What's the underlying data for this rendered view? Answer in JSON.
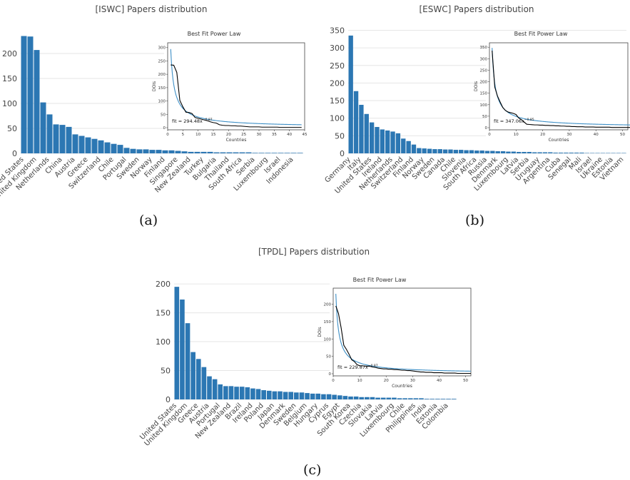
{
  "figure": {
    "labels": [
      "(a)",
      "(b)",
      "(c)"
    ]
  },
  "chart_data": [
    {
      "type": "bar",
      "title": "[ISWC] Papers distribution",
      "categories": [
        "United States",
        "",
        "United Kingdom",
        "",
        "Netherlands",
        "",
        "China",
        "",
        "Austria",
        "",
        "Greece",
        "",
        "Switzerland",
        "",
        "Chile",
        "",
        "Portugal",
        "",
        "Sweden",
        "",
        "Norway",
        "",
        "Finland",
        "",
        "Singapore",
        "",
        "New Zealand",
        "",
        "Turkey",
        "",
        "Bulgaria",
        "",
        "Thailand",
        "",
        "South Africa",
        "",
        "Serbia",
        "",
        "Luxembourg",
        "",
        "Israel",
        "",
        "Indonesia",
        ""
      ],
      "values": [
        235,
        234,
        207,
        102,
        78,
        58,
        57,
        53,
        38,
        35,
        32,
        29,
        26,
        22,
        19,
        17,
        11,
        9,
        8,
        8,
        7,
        7,
        6,
        6,
        5,
        4,
        3,
        3,
        3,
        3,
        2,
        2,
        2,
        2,
        2,
        2,
        1,
        1,
        1,
        1,
        1,
        1,
        1,
        1
      ],
      "ylim": [
        0,
        250
      ],
      "yticks": [
        0,
        50,
        100,
        150,
        200
      ],
      "inset": {
        "type": "line",
        "title": "Best Fit Power Law",
        "xlabel": "Countries",
        "ylabel": "DOIs",
        "xlim": [
          0,
          45
        ],
        "ylim": [
          0,
          310
        ],
        "xticks": [
          0,
          5,
          10,
          15,
          20,
          25,
          30,
          35,
          40,
          45
        ],
        "yticks": [
          0,
          50,
          100,
          150,
          200,
          250,
          300
        ],
        "fit_label": "fit = 294.48x",
        "fit_exponent": "−0.87",
        "fit_a": 294.48,
        "fit_b": 0.87,
        "series": [
          {
            "x": [
              1,
              2,
              3,
              4,
              5,
              6,
              7,
              8,
              9,
              10,
              11,
              12,
              13,
              14,
              15,
              16,
              17,
              18,
              19,
              20,
              21,
              22,
              23,
              24,
              25,
              26,
              27,
              28,
              29,
              30,
              31,
              32,
              33,
              34,
              35,
              36,
              37,
              38,
              39,
              40,
              41,
              42,
              43,
              44
            ],
            "y": [
              235,
              234,
              207,
              102,
              78,
              58,
              57,
              53,
              38,
              35,
              32,
              29,
              26,
              22,
              19,
              17,
              11,
              9,
              8,
              8,
              7,
              7,
              6,
              6,
              5,
              4,
              3,
              3,
              3,
              3,
              2,
              2,
              2,
              2,
              2,
              2,
              1,
              1,
              1,
              1,
              1,
              1,
              1,
              1
            ]
          }
        ]
      }
    },
    {
      "type": "bar",
      "title": "[ESWC] Papers distribution",
      "categories": [
        "Germany",
        "",
        "Italy",
        "",
        "United States",
        "",
        "Ireland",
        "",
        "Netherlands",
        "",
        "Switzerland",
        "",
        "Finland",
        "",
        "Norway",
        "",
        "Sweden",
        "",
        "Canada",
        "",
        "Chile",
        "",
        "Slovenia",
        "",
        "South Africa",
        "",
        "Russia",
        "",
        "Denmark",
        "",
        "Luxembourg",
        "",
        "Latvia",
        "",
        "Serbia",
        "",
        "Uruguay",
        "",
        "Argentina",
        "",
        "Cuba",
        "",
        "Senegal",
        "",
        "Mali",
        "",
        "Israel",
        "",
        "Ukraine",
        "",
        "Estonia",
        "",
        "Vietnam"
      ],
      "values": [
        335,
        177,
        138,
        112,
        88,
        75,
        68,
        65,
        62,
        57,
        42,
        35,
        25,
        15,
        14,
        13,
        12,
        12,
        11,
        11,
        10,
        10,
        9,
        9,
        8,
        8,
        7,
        7,
        6,
        6,
        5,
        5,
        4,
        4,
        4,
        3,
        3,
        3,
        3,
        2,
        2,
        2,
        2,
        2,
        2,
        1,
        1,
        1,
        1,
        1,
        1,
        1,
        1
      ],
      "ylim": [
        0,
        355
      ],
      "yticks": [
        0,
        50,
        100,
        150,
        200,
        250,
        300,
        350
      ],
      "inset": {
        "type": "line",
        "title": "Best Fit Power Law",
        "xlabel": "Countries",
        "ylabel": "DOIs",
        "xlim": [
          0,
          52
        ],
        "ylim": [
          0,
          360
        ],
        "xticks": [
          0,
          10,
          20,
          30,
          40,
          50
        ],
        "yticks": [
          0,
          50,
          100,
          150,
          200,
          250,
          300,
          350
        ],
        "fit_label": "fit = 347.06x",
        "fit_exponent": "−0.85",
        "fit_a": 347.06,
        "fit_b": 0.85,
        "series": [
          {
            "x": [
              1,
              2,
              3,
              4,
              5,
              6,
              7,
              8,
              9,
              10,
              11,
              12,
              13,
              14,
              15,
              16,
              17,
              18,
              19,
              20,
              21,
              22,
              23,
              24,
              25,
              26,
              27,
              28,
              29,
              30,
              31,
              32,
              33,
              34,
              35,
              36,
              37,
              38,
              39,
              40,
              41,
              42,
              43,
              44,
              45,
              46,
              47,
              48,
              49,
              50,
              51,
              52,
              53
            ],
            "y": [
              335,
              177,
              138,
              112,
              88,
              75,
              68,
              65,
              62,
              57,
              42,
              35,
              25,
              15,
              14,
              13,
              12,
              12,
              11,
              11,
              10,
              10,
              9,
              9,
              8,
              8,
              7,
              7,
              6,
              6,
              5,
              5,
              4,
              4,
              4,
              3,
              3,
              3,
              3,
              2,
              2,
              2,
              2,
              2,
              2,
              1,
              1,
              1,
              1,
              1,
              1,
              1,
              1
            ]
          }
        ]
      }
    },
    {
      "type": "bar",
      "title": "[TPDL] Papers distribution",
      "categories": [
        "United States",
        "",
        "United Kingdom",
        "",
        "Greece",
        "",
        "Austria",
        "",
        "Portugal",
        "",
        "New Zealand",
        "",
        "Brazil",
        "",
        "Ireland",
        "",
        "Poland",
        "",
        "Japan",
        "",
        "Denmark",
        "",
        "Sweden",
        "",
        "Belgium",
        "",
        "Hungary",
        "",
        "Cyprus",
        "",
        "Egypt",
        "",
        "South Korea",
        "",
        "Czechia",
        "",
        "Slovakia",
        "",
        "Latvia",
        "",
        "Luxembourg",
        "",
        "Chile",
        "",
        "Philippines",
        "",
        "India",
        "",
        "Estonia",
        "",
        "Colombia",
        ""
      ],
      "values": [
        195,
        173,
        132,
        82,
        70,
        56,
        40,
        35,
        26,
        23,
        23,
        22,
        22,
        21,
        19,
        18,
        16,
        15,
        14,
        14,
        13,
        13,
        12,
        12,
        11,
        10,
        10,
        9,
        9,
        8,
        7,
        6,
        5,
        5,
        4,
        4,
        4,
        3,
        3,
        3,
        3,
        2,
        2,
        2,
        2,
        2,
        1,
        1,
        1,
        1,
        1,
        1
      ],
      "ylim": [
        0,
        210
      ],
      "yticks": [
        0,
        50,
        100,
        150,
        200
      ],
      "inset": {
        "type": "line",
        "title": "Best Fit Power Law",
        "xlabel": "Countries",
        "ylabel": "DOIs",
        "xlim": [
          0,
          52
        ],
        "ylim": [
          0,
          240
        ],
        "xticks": [
          0,
          10,
          20,
          30,
          40,
          50
        ],
        "yticks": [
          0,
          50,
          100,
          150,
          200
        ],
        "fit_label": "fit = 229.87x",
        "fit_exponent": "−0.87",
        "fit_a": 229.87,
        "fit_b": 0.87,
        "series": [
          {
            "x": [
              1,
              2,
              3,
              4,
              5,
              6,
              7,
              8,
              9,
              10,
              11,
              12,
              13,
              14,
              15,
              16,
              17,
              18,
              19,
              20,
              21,
              22,
              23,
              24,
              25,
              26,
              27,
              28,
              29,
              30,
              31,
              32,
              33,
              34,
              35,
              36,
              37,
              38,
              39,
              40,
              41,
              42,
              43,
              44,
              45,
              46,
              47,
              48,
              49,
              50,
              51,
              52
            ],
            "y": [
              195,
              173,
              132,
              82,
              70,
              56,
              40,
              35,
              26,
              23,
              23,
              22,
              22,
              21,
              19,
              18,
              16,
              15,
              14,
              14,
              13,
              13,
              12,
              12,
              11,
              10,
              10,
              9,
              9,
              8,
              7,
              6,
              5,
              5,
              4,
              4,
              4,
              3,
              3,
              3,
              3,
              2,
              2,
              2,
              2,
              2,
              1,
              1,
              1,
              1,
              1,
              1
            ]
          }
        ]
      }
    }
  ],
  "colors": {
    "bar": "#2c77b3",
    "fit": "#3d8fc6",
    "data_line": "#000000",
    "text": "#444444",
    "grid": "#e6e6e6"
  }
}
